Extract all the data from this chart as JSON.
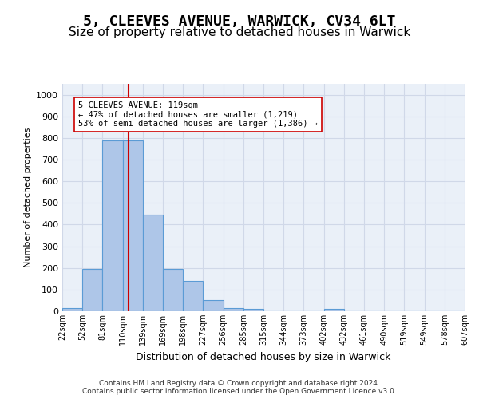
{
  "title_line1": "5, CLEEVES AVENUE, WARWICK, CV34 6LT",
  "title_line2": "Size of property relative to detached houses in Warwick",
  "xlabel": "Distribution of detached houses by size in Warwick",
  "ylabel": "Number of detached properties",
  "bin_labels": [
    "22sqm",
    "52sqm",
    "81sqm",
    "110sqm",
    "139sqm",
    "169sqm",
    "198sqm",
    "227sqm",
    "256sqm",
    "285sqm",
    "315sqm",
    "344sqm",
    "373sqm",
    "402sqm",
    "432sqm",
    "461sqm",
    "490sqm",
    "519sqm",
    "549sqm",
    "578sqm",
    "607sqm"
  ],
  "bar_heights": [
    15,
    195,
    790,
    790,
    445,
    195,
    140,
    50,
    15,
    10,
    0,
    0,
    0,
    10,
    0,
    0,
    0,
    0,
    0,
    0
  ],
  "bar_color": "#aec6e8",
  "bar_edge_color": "#5b9bd5",
  "grid_color": "#d0d8e8",
  "vline_color": "#cc0000",
  "property_sqm": 119,
  "annotation_text": "5 CLEEVES AVENUE: 119sqm\n← 47% of detached houses are smaller (1,219)\n53% of semi-detached houses are larger (1,386) →",
  "annotation_box_color": "#ffffff",
  "annotation_edge_color": "#cc0000",
  "ylim": [
    0,
    1050
  ],
  "yticks": [
    0,
    100,
    200,
    300,
    400,
    500,
    600,
    700,
    800,
    900,
    1000
  ],
  "background_color": "#eaf0f8",
  "footer_text": "Contains HM Land Registry data © Crown copyright and database right 2024.\nContains public sector information licensed under the Open Government Licence v3.0.",
  "title_fontsize": 13,
  "subtitle_fontsize": 11
}
